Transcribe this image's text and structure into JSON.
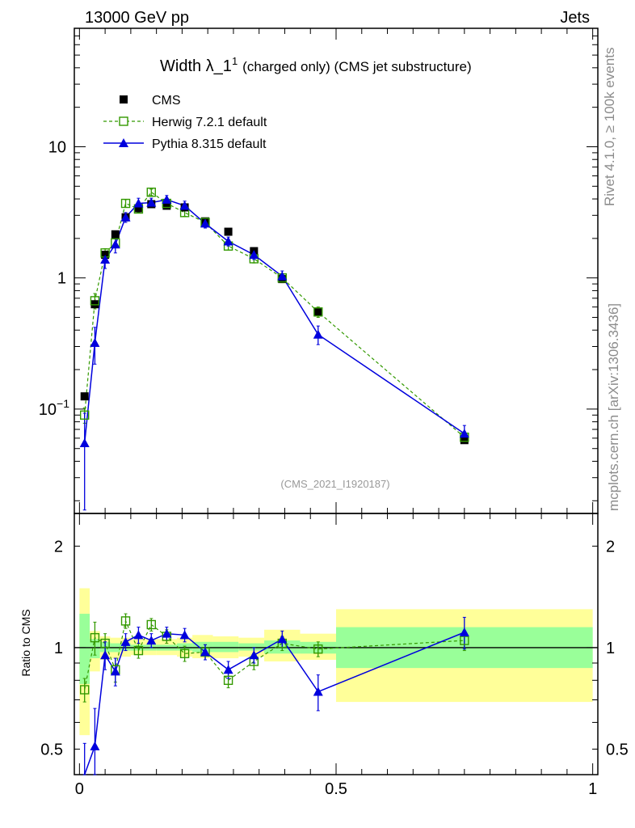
{
  "header": {
    "left": "13000 GeV pp",
    "right": "Jets"
  },
  "side": {
    "top": "Rivet 4.1.0, ≥ 100k events",
    "bottom": "mcplots.cern.ch [arXiv:1306.3436]"
  },
  "watermark": "(CMS_2021_I1920187)",
  "chart_data": [
    {
      "type": "scatter",
      "title": "Width λ_1",
      "title_sup": "1",
      "subtitle": "(charged only) (CMS jet substructure)",
      "xlabel": "",
      "ylabel": "",
      "yscale": "log",
      "xlim": [
        -0.01,
        1.01
      ],
      "ylim": [
        0.016,
        80
      ],
      "yticks": [
        {
          "value": 10,
          "label": "10"
        },
        {
          "value": 1,
          "label": "1"
        },
        {
          "value": 0.1,
          "label": "10",
          "sup": "−1"
        }
      ],
      "x": [
        0.01,
        0.03,
        0.05,
        0.07,
        0.09,
        0.115,
        0.14,
        0.17,
        0.205,
        0.245,
        0.29,
        0.34,
        0.395,
        0.465,
        0.75
      ],
      "series": [
        {
          "name": "CMS",
          "marker": "square-filled",
          "color": "#000000",
          "values": [
            0.125,
            0.63,
            1.5,
            2.15,
            2.9,
            3.4,
            3.65,
            3.55,
            3.45,
            2.7,
            2.25,
            1.6,
            0.98,
            0.55,
            0.058
          ]
        },
        {
          "name": "Herwig 7.2.1 default",
          "marker": "square-open",
          "line": "dashed",
          "color": "#339900",
          "values": [
            0.09,
            0.67,
            1.55,
            1.85,
            3.7,
            3.35,
            4.5,
            3.7,
            3.15,
            2.65,
            1.75,
            1.4,
            1.0,
            0.55,
            0.061
          ],
          "errors": [
            0.012,
            0.09,
            0.12,
            0.14,
            0.25,
            0.2,
            0.25,
            0.22,
            0.2,
            0.16,
            0.12,
            0.1,
            0.08,
            0.05,
            0.006
          ]
        },
        {
          "name": "Pythia 8.315 default",
          "marker": "triangle-filled",
          "line": "solid",
          "color": "#0000dd",
          "values": [
            0.055,
            0.32,
            1.38,
            1.8,
            2.9,
            3.7,
            3.75,
            3.95,
            3.55,
            2.6,
            1.9,
            1.5,
            1.03,
            0.37,
            0.065
          ],
          "errors": [
            0.038,
            0.1,
            0.2,
            0.25,
            0.25,
            0.35,
            0.3,
            0.3,
            0.3,
            0.2,
            0.15,
            0.12,
            0.1,
            0.06,
            0.01
          ]
        }
      ]
    },
    {
      "type": "scatter",
      "ylabel": "Ratio to CMS",
      "yscale": "log",
      "xlim": [
        -0.01,
        1.01
      ],
      "ylim": [
        0.42,
        2.5
      ],
      "yticks": [
        {
          "value": 2,
          "label": "2"
        },
        {
          "value": 1,
          "label": "1"
        },
        {
          "value": 0.5,
          "label": "0.5"
        }
      ],
      "xticks": [
        {
          "value": 0,
          "label": "0"
        },
        {
          "value": 0.5,
          "label": "0.5"
        },
        {
          "value": 1,
          "label": "1"
        }
      ],
      "bands": [
        {
          "x0": 0.0,
          "x1": 0.02,
          "inner": [
            0.78,
            1.26
          ],
          "outer": [
            0.55,
            1.5
          ]
        },
        {
          "x0": 0.02,
          "x1": 0.04,
          "inner": [
            0.93,
            1.06
          ],
          "outer": [
            0.85,
            1.12
          ]
        },
        {
          "x0": 0.04,
          "x1": 0.06,
          "inner": [
            0.97,
            1.04
          ],
          "outer": [
            0.92,
            1.08
          ]
        },
        {
          "x0": 0.06,
          "x1": 0.08,
          "inner": [
            0.97,
            1.03
          ],
          "outer": [
            0.93,
            1.07
          ]
        },
        {
          "x0": 0.08,
          "x1": 0.1,
          "inner": [
            0.98,
            1.03
          ],
          "outer": [
            0.94,
            1.07
          ]
        },
        {
          "x0": 0.1,
          "x1": 0.13,
          "inner": [
            0.98,
            1.02
          ],
          "outer": [
            0.95,
            1.06
          ]
        },
        {
          "x0": 0.13,
          "x1": 0.15,
          "inner": [
            0.98,
            1.02
          ],
          "outer": [
            0.95,
            1.06
          ]
        },
        {
          "x0": 0.15,
          "x1": 0.19,
          "inner": [
            0.98,
            1.02
          ],
          "outer": [
            0.95,
            1.06
          ]
        },
        {
          "x0": 0.19,
          "x1": 0.22,
          "inner": [
            0.98,
            1.03
          ],
          "outer": [
            0.94,
            1.07
          ]
        },
        {
          "x0": 0.22,
          "x1": 0.26,
          "inner": [
            0.97,
            1.04
          ],
          "outer": [
            0.93,
            1.09
          ]
        },
        {
          "x0": 0.26,
          "x1": 0.31,
          "inner": [
            0.97,
            1.04
          ],
          "outer": [
            0.93,
            1.08
          ]
        },
        {
          "x0": 0.31,
          "x1": 0.36,
          "inner": [
            0.98,
            1.03
          ],
          "outer": [
            0.94,
            1.07
          ]
        },
        {
          "x0": 0.36,
          "x1": 0.43,
          "inner": [
            0.96,
            1.05
          ],
          "outer": [
            0.91,
            1.13
          ]
        },
        {
          "x0": 0.43,
          "x1": 0.5,
          "inner": [
            0.96,
            1.04
          ],
          "outer": [
            0.92,
            1.1
          ]
        },
        {
          "x0": 0.5,
          "x1": 1.0,
          "inner": [
            0.87,
            1.15
          ],
          "outer": [
            0.69,
            1.3
          ]
        }
      ],
      "x": [
        0.01,
        0.03,
        0.05,
        0.07,
        0.09,
        0.115,
        0.14,
        0.17,
        0.205,
        0.245,
        0.29,
        0.34,
        0.395,
        0.465,
        0.75
      ],
      "series": [
        {
          "name": "Herwig 7.2.1 default",
          "marker": "square-open",
          "line": "dashed",
          "color": "#339900",
          "values": [
            0.75,
            1.07,
            1.03,
            0.86,
            1.2,
            0.98,
            1.17,
            1.08,
            0.96,
            0.97,
            0.8,
            0.91,
            1.03,
            0.99,
            1.05
          ],
          "errors": [
            0.06,
            0.12,
            0.07,
            0.07,
            0.06,
            0.05,
            0.05,
            0.05,
            0.05,
            0.05,
            0.04,
            0.05,
            0.05,
            0.05,
            0.07
          ]
        },
        {
          "name": "Pythia 8.315 default",
          "marker": "triangle-filled",
          "line": "solid",
          "color": "#0000dd",
          "values": [
            0.4,
            0.51,
            0.95,
            0.85,
            1.04,
            1.09,
            1.05,
            1.1,
            1.09,
            0.97,
            0.86,
            0.95,
            1.06,
            0.74,
            1.11
          ],
          "errors": [
            0.12,
            0.15,
            0.09,
            0.08,
            0.06,
            0.06,
            0.05,
            0.05,
            0.05,
            0.05,
            0.05,
            0.05,
            0.06,
            0.09,
            0.12
          ]
        }
      ]
    }
  ]
}
